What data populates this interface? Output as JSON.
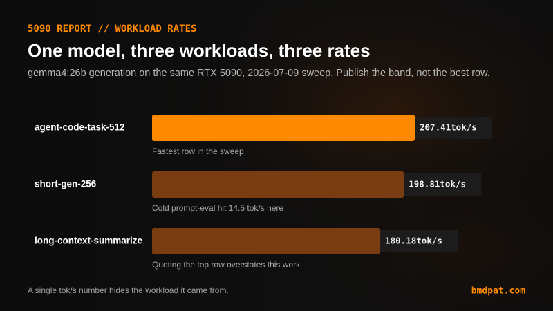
{
  "kicker": "5090 REPORT // WORKLOAD RATES",
  "chart_data": {
    "type": "bar",
    "orientation": "horizontal",
    "title": "One model, three workloads, three rates",
    "subtitle": "gemma4:26b generation on the same RTX 5090, 2026-07-09 sweep. Publish the band, not the best row.",
    "categories": [
      "agent-code-task-512",
      "short-gen-256",
      "long-context-summarize"
    ],
    "values": [
      207.41,
      198.81,
      180.18
    ],
    "value_labels": [
      "207.41tok/s",
      "198.81tok/s",
      "180.18tok/s"
    ],
    "colors": [
      "#ff8a00",
      "#7a3d12",
      "#7a3d12"
    ],
    "annotations": [
      "Fastest row in the sweep",
      "Cold prompt-eval hit 14.5 tok/s here",
      "Quoting the top row overstates this work"
    ]
  },
  "footer": {
    "note": "A single tok/s number hides the workload it came from.",
    "brand": "bmdpat.com"
  }
}
